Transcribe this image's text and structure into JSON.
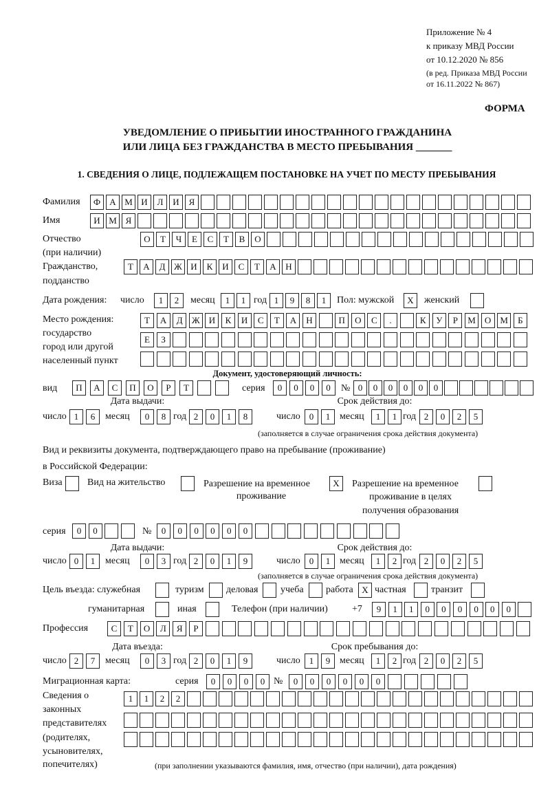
{
  "header": {
    "appendix": "Приложение № 4",
    "order": "к приказу МВД России",
    "order_date": "от 10.12.2020 № 856",
    "revision1": "(в ред. Приказа МВД России",
    "revision2": "от 16.11.2022 № 867)",
    "form_label": "ФОРМА"
  },
  "title": {
    "line1": "УВЕДОМЛЕНИЕ О ПРИБЫТИИ ИНОСТРАННОГО ГРАЖДАНИНА",
    "line2": "ИЛИ ЛИЦА БЕЗ ГРАЖДАНСТВА В МЕСТО ПРЕБЫВАНИЯ _______"
  },
  "section1": {
    "heading": "1. СВЕДЕНИЯ О ЛИЦЕ, ПОДЛЕЖАЩЕМ ПОСТАНОВКЕ НА УЧЕТ ПО МЕСТУ ПРЕБЫВАНИЯ",
    "surname": {
      "label": "Фамилия",
      "value": "ФАМИЛИЯ"
    },
    "name": {
      "label": "Имя",
      "value": "ИМЯ"
    },
    "patronymic": {
      "label1": "Отчество",
      "label2": "(при наличии)",
      "value": "ОТЧЕСТВО"
    },
    "citizenship": {
      "label1": "Гражданство,",
      "label2": "подданство",
      "value": "ТАДЖИКИСТАН"
    },
    "birth": {
      "label": "Дата рождения:",
      "day_label": "число",
      "day": "12",
      "month_label": "месяц",
      "month": "11",
      "year_label": "год",
      "year": "1981",
      "sex_label": "Пол: мужской",
      "male": "X",
      "female_label": "женский",
      "female": ""
    },
    "birthplace": {
      "label1": "Место рождения:",
      "label2": "государство",
      "label3": "город или другой",
      "label4": "населенный пункт",
      "row1": "ТАДЖИКИСТАН ПОС. КУРМОМБ",
      "row2": "ЕЗ",
      "row3": ""
    },
    "id_doc": {
      "heading": "Документ, удостоверяющий личность:",
      "type_label": "вид",
      "type": "ПАСПОРТ",
      "series_label": "серия",
      "series": "0000",
      "number_label": "№",
      "number": "000000",
      "issue_label": "Дата выдачи:",
      "valid_label": "Срок действия до:",
      "day_label": "число",
      "month_label": "месяц",
      "year_label": "год",
      "issue_day": "16",
      "issue_month": "08",
      "issue_year": "2018",
      "valid_day": "01",
      "valid_month": "11",
      "valid_year": "2025",
      "note": "(заполняется в случае ограничения срока действия документа)"
    },
    "stay_doc": {
      "heading1": "Вид и реквизиты документа, подтверждающего право на пребывание (проживание)",
      "heading2": "в Российской Федерации:",
      "visa_label": "Виза",
      "visa": "",
      "residence_label": "Вид на жительство",
      "residence": "",
      "temp_label1": "Разрешение на временное",
      "temp_label2": "проживание",
      "temp": "X",
      "edu_label1": "Разрешение на временное",
      "edu_label2": "проживание в целях",
      "edu_label3": "получения образования",
      "edu": "",
      "series_label": "серия",
      "series": "00",
      "number_label": "№",
      "number": "000000",
      "issue_label": "Дата выдачи:",
      "valid_label": "Срок действия до:",
      "day_label": "число",
      "month_label": "месяц",
      "year_label": "год",
      "issue_day": "01",
      "issue_month": "03",
      "issue_year": "2019",
      "valid_day": "01",
      "valid_month": "12",
      "valid_year": "2025",
      "note": "(заполняется в случае ограничения срока действия документа)"
    },
    "purpose": {
      "label": "Цель въезда: служебная",
      "service": "",
      "tourism_label": "туризм",
      "tourism": "",
      "business_label": "деловая",
      "business": "",
      "study_label": "учеба",
      "study": "",
      "work_label": "работа",
      "work": "X",
      "private_label": "частная",
      "private": "",
      "transit_label": "транзит",
      "transit": "",
      "humanitarian_label": "гуманитарная",
      "humanitarian": "",
      "other_label": "иная",
      "other": ""
    },
    "phone": {
      "label": "Телефон (при наличии)",
      "prefix": "+7",
      "value": "911000000"
    },
    "profession": {
      "label": "Профессия",
      "value": "СТОЛЯР"
    },
    "entry": {
      "entry_label": "Дата въезда:",
      "stay_label": "Срок пребывания до:",
      "day_label": "число",
      "month_label": "месяц",
      "year_label": "год",
      "entry_day": "27",
      "entry_month": "03",
      "entry_year": "2019",
      "stay_day": "19",
      "stay_month": "12",
      "stay_year": "2025"
    },
    "migration_card": {
      "label": "Миграционная карта:",
      "series_label": "серия",
      "series": "0000",
      "number_label": "№",
      "number": "000000"
    },
    "representatives": {
      "label1": "Сведения о",
      "label2": "законных",
      "label3": "представителях",
      "label4": "(родителях,",
      "label5": "усыновителях,",
      "label6": "попечителях)",
      "row1": "1122",
      "row2": "",
      "row3": "",
      "note": "(при заполнении указываются фамилия, имя, отчество (при наличии), дата рождения)"
    }
  }
}
